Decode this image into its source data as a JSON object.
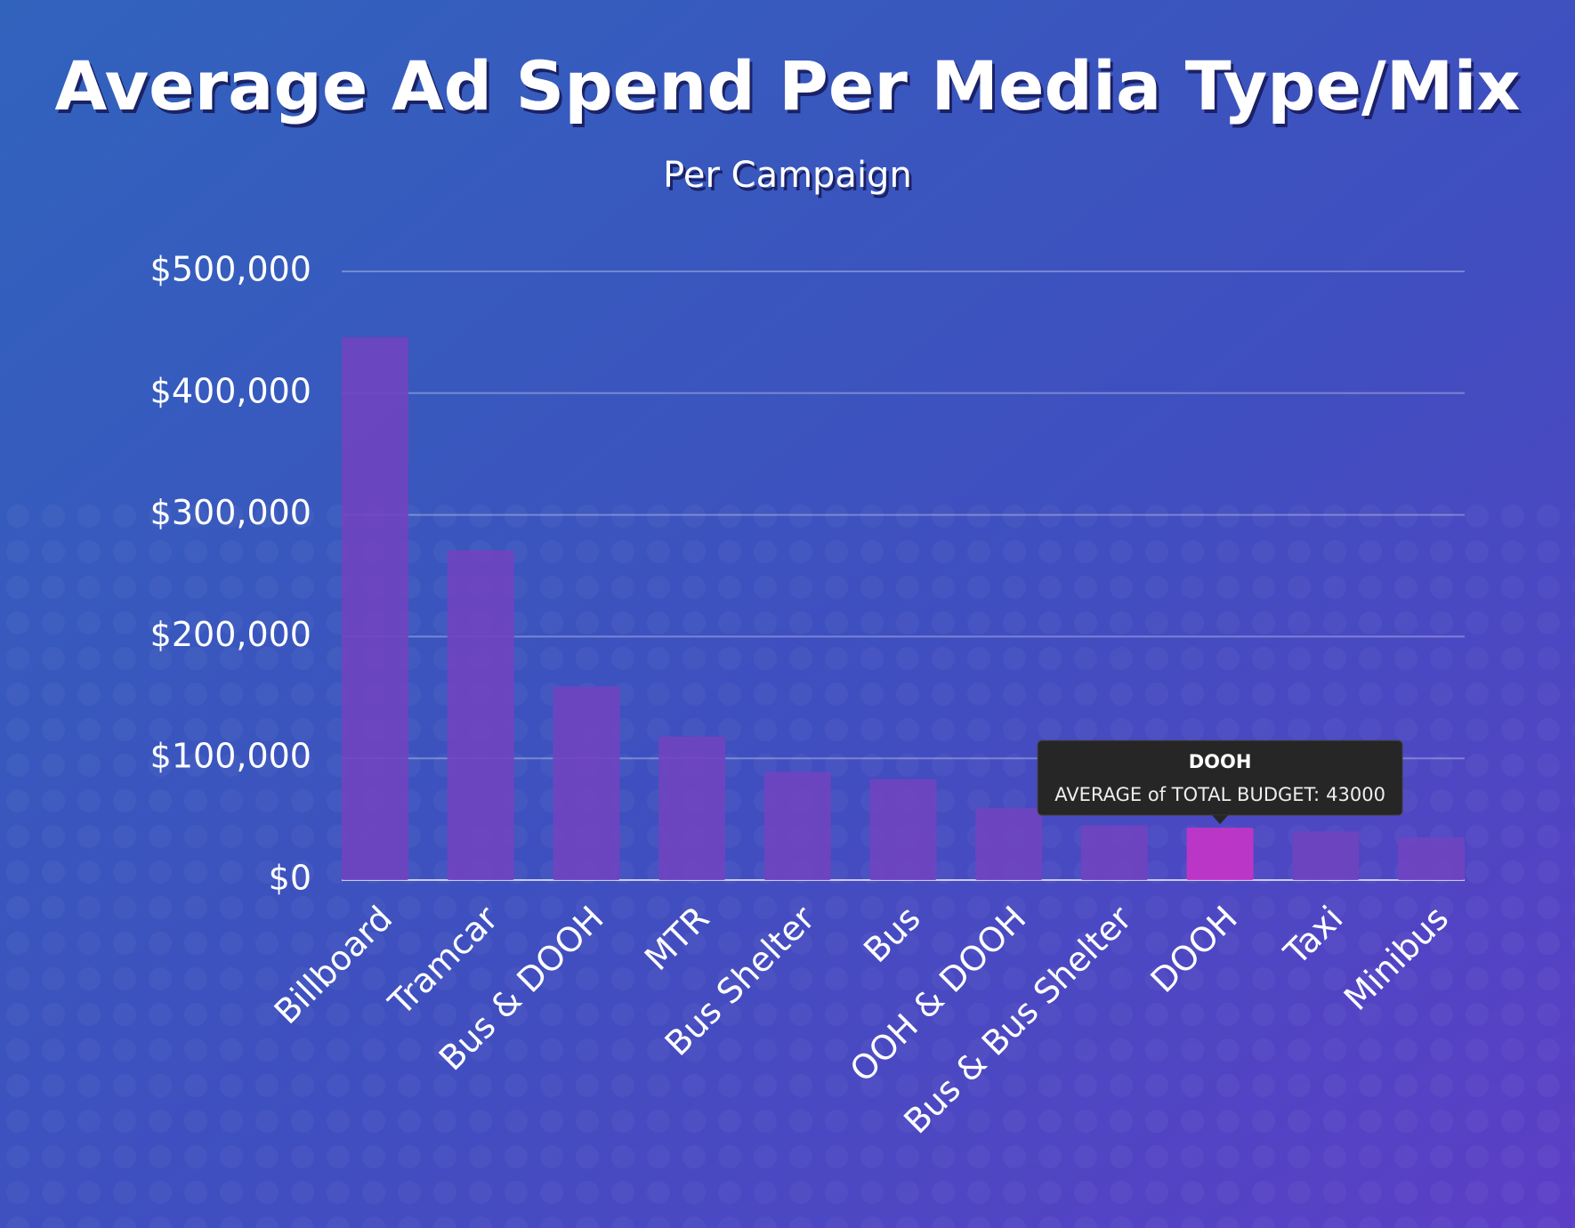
{
  "chart_data": {
    "type": "bar",
    "title": "Average Ad Spend Per Media Type/Mix",
    "subtitle": "Per Campaign",
    "categories": [
      "Billboard",
      "Tramcar",
      "Bus & DOOH",
      "MTR",
      "Bus Shelter",
      "Bus",
      "OOH & DOOH",
      "Bus & Bus Shelter",
      "DOOH",
      "Taxi",
      "Minibus"
    ],
    "values": [
      446000,
      271000,
      159000,
      118000,
      89000,
      83000,
      59000,
      45000,
      43000,
      40000,
      35000
    ],
    "colors": [
      "#7044c0",
      "#7044c0",
      "#7044c0",
      "#7044c0",
      "#7044c0",
      "#7044c0",
      "#7044c0",
      "#7044c0",
      "#c634c8",
      "#7044c0",
      "#7044c0"
    ],
    "ylim": [
      0,
      500000
    ],
    "yticks": [
      {
        "value": 0,
        "label": "$0"
      },
      {
        "value": 100000,
        "label": "$100,000"
      },
      {
        "value": 200000,
        "label": "$200,000"
      },
      {
        "value": 300000,
        "label": "$300,000"
      },
      {
        "value": 400000,
        "label": "$400,000"
      },
      {
        "value": 500000,
        "label": "$500,000"
      }
    ],
    "grid": true,
    "tooltip": {
      "title": "DOOH",
      "label": "AVERAGE of TOTAL BUDGET:",
      "value": 43000
    }
  }
}
